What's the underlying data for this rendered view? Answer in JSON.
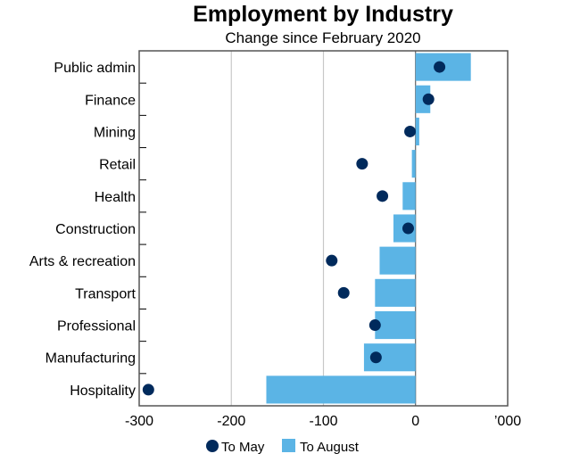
{
  "chart_data": {
    "type": "bar",
    "orientation": "horizontal",
    "title": "Employment by Industry",
    "subtitle": "Change since February 2020",
    "unit_label": "’000",
    "xlim": [
      -300,
      100
    ],
    "xticks": [
      -300,
      -200,
      -100,
      0
    ],
    "xtick_labels": [
      "-300",
      "-200",
      "-100",
      "0"
    ],
    "grid": "vertical",
    "legend_placement": "bottom",
    "categories": [
      "Public admin",
      "Finance",
      "Mining",
      "Retail",
      "Health",
      "Construction",
      "Arts & recreation",
      "Transport",
      "Professional",
      "Manufacturing",
      "Hospitality"
    ],
    "series": [
      {
        "name": "To May",
        "kind": "dot",
        "color": "#002a5c",
        "values": [
          26,
          14,
          -6,
          -58,
          -36,
          -8,
          -91,
          -78,
          -44,
          -43,
          -290
        ]
      },
      {
        "name": "To August",
        "kind": "bar",
        "color": "#5bb4e5",
        "values": [
          60,
          16,
          4,
          -4,
          -14,
          -24,
          -39,
          -44,
          -44,
          -56,
          -162
        ]
      }
    ]
  }
}
